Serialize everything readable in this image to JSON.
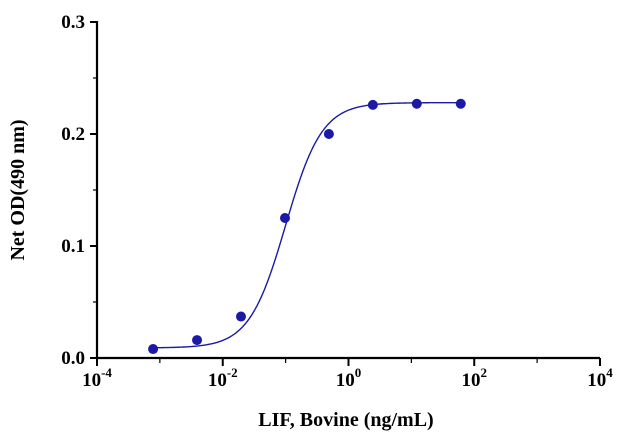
{
  "chart_data": {
    "type": "scatter",
    "title": "",
    "xlabel": "LIF, Bovine (ng/mL)",
    "ylabel": "Net OD(490 nm)",
    "x_scale": "log10",
    "xlim": [
      0.0001,
      10000
    ],
    "ylim": [
      0,
      0.3
    ],
    "x_ticks": [
      {
        "base": "10",
        "exp": "-4",
        "value": 0.0001
      },
      {
        "base": "10",
        "exp": "-2",
        "value": 0.01
      },
      {
        "base": "10",
        "exp": "0",
        "value": 1
      },
      {
        "base": "10",
        "exp": "2",
        "value": 100
      },
      {
        "base": "10",
        "exp": "4",
        "value": 10000
      }
    ],
    "y_ticks": [
      {
        "label": "0.0",
        "value": 0
      },
      {
        "label": "0.1",
        "value": 0.1
      },
      {
        "label": "0.2",
        "value": 0.2
      },
      {
        "label": "0.3",
        "value": 0.3
      }
    ],
    "grid": false,
    "series": [
      {
        "color": "#1a1aa6",
        "x": [
          0.00078,
          0.0039,
          0.0195,
          0.0977,
          0.488,
          2.44,
          12.2,
          61.0
        ],
        "y": [
          0.008,
          0.016,
          0.037,
          0.125,
          0.2,
          0.226,
          0.227,
          0.227
        ]
      }
    ],
    "fit": {
      "model": "4PL",
      "bottom": 0.009,
      "top": 0.228,
      "ec50": 0.1,
      "hill": 1.5
    }
  }
}
